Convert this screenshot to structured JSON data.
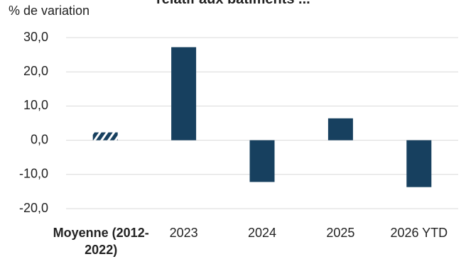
{
  "chart_data": {
    "type": "bar",
    "title": "relatif aux bâtiments ...",
    "y_label": "% de variation",
    "categories": [
      "Moyenne (2012-2022)",
      "2023",
      "2024",
      "2025",
      "2026 YTD"
    ],
    "values": [
      2.3,
      27.2,
      -12.2,
      6.4,
      -13.7
    ],
    "hatched": [
      true,
      false,
      false,
      false,
      false
    ],
    "color": "#17405f",
    "ylim": [
      -20,
      30
    ],
    "yticks": [
      {
        "value": 30,
        "label": "30,0"
      },
      {
        "value": 20,
        "label": "20,0"
      },
      {
        "value": 10,
        "label": "10,0"
      },
      {
        "value": 0,
        "label": "0,0"
      },
      {
        "value": -10,
        "label": "-10,0"
      },
      {
        "value": -20,
        "label": "-20,0"
      }
    ],
    "grid": true
  }
}
